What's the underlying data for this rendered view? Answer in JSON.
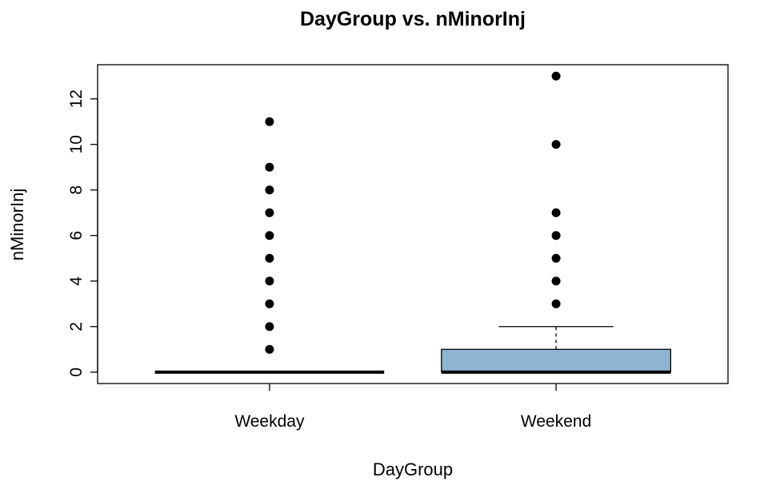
{
  "chart_data": {
    "type": "boxplot",
    "title": "DayGroup  vs. nMinorInj",
    "xlabel": "DayGroup",
    "ylabel": "nMinorInj",
    "ylim": [
      -0.5,
      13.5
    ],
    "yticks": [
      0,
      2,
      4,
      6,
      8,
      10,
      12
    ],
    "categories": [
      "Weekday",
      "Weekend"
    ],
    "box_color": "#8fb3d3",
    "outlier_color": "#000000",
    "boxes": [
      {
        "name": "Weekday",
        "whisker_low": 0,
        "q1": 0,
        "median": 0,
        "q3": 0,
        "whisker_high": 0,
        "outliers": [
          1,
          2,
          3,
          4,
          5,
          6,
          7,
          8,
          9,
          11
        ]
      },
      {
        "name": "Weekend",
        "whisker_low": 0,
        "q1": 0,
        "median": 0,
        "q3": 1,
        "whisker_high": 2,
        "outliers": [
          3,
          4,
          5,
          6,
          7,
          10,
          13
        ]
      }
    ]
  }
}
